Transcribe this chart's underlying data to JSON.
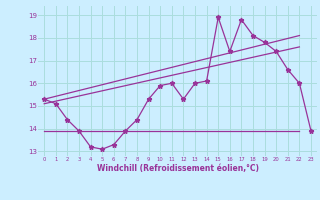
{
  "xlabel": "Windchill (Refroidissement éolien,°C)",
  "bg_color": "#cceeff",
  "line_color": "#993399",
  "xlim": [
    -0.5,
    23.5
  ],
  "ylim": [
    12.8,
    19.4
  ],
  "xticks": [
    0,
    1,
    2,
    3,
    4,
    5,
    6,
    7,
    8,
    9,
    10,
    11,
    12,
    13,
    14,
    15,
    16,
    17,
    18,
    19,
    20,
    21,
    22,
    23
  ],
  "yticks": [
    13,
    14,
    15,
    16,
    17,
    18,
    19
  ],
  "grid_color": "#aadddd",
  "line1_x": [
    0,
    1,
    2,
    3,
    4,
    5,
    6,
    7,
    8,
    9,
    10,
    11,
    12,
    13,
    14,
    15,
    16,
    17,
    18,
    19,
    20,
    21,
    22,
    23
  ],
  "line1_y": [
    15.3,
    15.1,
    14.4,
    13.9,
    13.2,
    13.1,
    13.3,
    13.9,
    14.4,
    15.3,
    15.9,
    16.0,
    15.3,
    16.0,
    16.1,
    18.9,
    17.4,
    18.8,
    18.1,
    17.8,
    17.4,
    16.6,
    16.0,
    13.9
  ],
  "line2_x": [
    0,
    22
  ],
  "line2_y": [
    13.9,
    13.9
  ],
  "line3_x": [
    0,
    22
  ],
  "line3_y": [
    15.1,
    17.6
  ],
  "line4_x": [
    0,
    22
  ],
  "line4_y": [
    15.3,
    18.1
  ]
}
